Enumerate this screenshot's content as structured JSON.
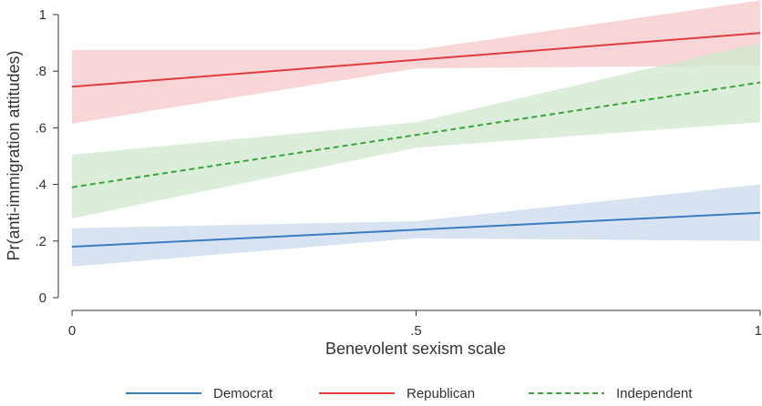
{
  "chart_data": {
    "type": "line",
    "xlabel": "Benevolent sexism scale",
    "ylabel": "Pr(anti-immigration attitudes)",
    "xlim": [
      0,
      1
    ],
    "ylim": [
      0,
      1
    ],
    "x_ticks": [
      {
        "value": 0,
        "label": "0"
      },
      {
        "value": 0.5,
        "label": ".5"
      },
      {
        "value": 1,
        "label": "1"
      }
    ],
    "y_ticks": [
      {
        "value": 0,
        "label": "0"
      },
      {
        "value": 0.2,
        "label": ".2"
      },
      {
        "value": 0.4,
        "label": ".4"
      },
      {
        "value": 0.6,
        "label": ".6"
      },
      {
        "value": 0.8,
        "label": ".8"
      },
      {
        "value": 1,
        "label": "1"
      }
    ],
    "grid": false,
    "legend_position": "bottom",
    "series": [
      {
        "name": "Democrat",
        "color": "#3a7dbf",
        "band_color": "#c9d9ec",
        "dash": "solid",
        "x": [
          0,
          0.5,
          1
        ],
        "y": [
          0.18,
          0.24,
          0.3
        ],
        "ci_low": [
          0.11,
          0.21,
          0.2
        ],
        "ci_high": [
          0.245,
          0.27,
          0.4
        ]
      },
      {
        "name": "Republican",
        "color": "#e03c3c",
        "band_color": "#f5c7c9",
        "dash": "solid",
        "x": [
          0,
          0.5,
          1
        ],
        "y": [
          0.745,
          0.84,
          0.935
        ],
        "ci_low": [
          0.615,
          0.81,
          0.82
        ],
        "ci_high": [
          0.875,
          0.875,
          1.05
        ]
      },
      {
        "name": "Independent",
        "color": "#3aa53a",
        "band_color": "#cfe8cc",
        "dash": "dashed",
        "x": [
          0,
          0.5,
          1
        ],
        "y": [
          0.39,
          0.575,
          0.76
        ],
        "ci_low": [
          0.28,
          0.53,
          0.62
        ],
        "ci_high": [
          0.505,
          0.62,
          0.9
        ]
      }
    ]
  }
}
